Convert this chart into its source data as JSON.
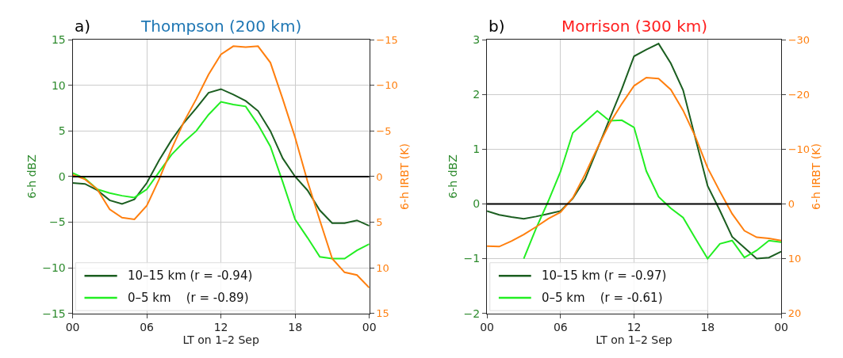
{
  "chart_data": [
    {
      "type": "line",
      "title": "Thompson (200 km)",
      "annotations": [
        "a)"
      ],
      "xlabel": "LT on 1–2 Sep",
      "ylabel": "6-h dBZ",
      "y2label": "6-h IRBT (K)",
      "x": [
        0,
        1,
        2,
        3,
        4,
        5,
        6,
        7,
        8,
        9,
        10,
        11,
        12,
        13,
        14,
        15,
        16,
        17,
        18,
        19,
        20,
        21,
        22,
        23,
        24
      ],
      "xlim": [
        0,
        24
      ],
      "xticks": [
        {
          "value": 0,
          "label": "00"
        },
        {
          "value": 6,
          "label": "06"
        },
        {
          "value": 12,
          "label": "12"
        },
        {
          "value": 18,
          "label": "18"
        },
        {
          "value": 24,
          "label": "00"
        }
      ],
      "ylim": [
        -15,
        15
      ],
      "yticks": [
        -15,
        -10,
        -5,
        0,
        5,
        10,
        15
      ],
      "y2lim": [
        15,
        -15
      ],
      "y2ticks": [
        -15,
        -10,
        -5,
        0,
        5,
        10,
        15
      ],
      "grid": true,
      "legend": "bottom left",
      "ref_lines": [
        {
          "axis": "y",
          "value": 0,
          "color": "#000000"
        }
      ],
      "series": [
        {
          "name": "10–15 km (r = -0.94)",
          "color": "#1b5e20",
          "values": [
            -0.7,
            -0.8,
            -1.5,
            -2.6,
            -3.0,
            -2.5,
            -0.7,
            1.8,
            4.0,
            5.9,
            7.5,
            9.2,
            9.6,
            9.0,
            8.3,
            7.2,
            5.0,
            2.0,
            0.0,
            -1.5,
            -3.7,
            -5.1,
            -5.1,
            -4.8,
            -5.4
          ]
        },
        {
          "name": "0–5 km    (r = -0.89)",
          "color": "#22ee22",
          "values": [
            0.4,
            -0.2,
            -1.4,
            -1.8,
            -2.1,
            -2.3,
            -1.4,
            0.5,
            2.4,
            3.8,
            5.0,
            6.8,
            8.2,
            7.9,
            7.7,
            5.7,
            3.3,
            -0.6,
            -4.7,
            -6.7,
            -8.8,
            -9.0,
            -9.0,
            -8.1,
            -7.4
          ]
        },
        {
          "axis": "y2",
          "color": "#ff7f0e",
          "values": [
            -0.2,
            0.3,
            1.4,
            3.6,
            4.5,
            4.7,
            3.2,
            0.3,
            -3.0,
            -6.0,
            -8.5,
            -11.2,
            -13.4,
            -14.3,
            -14.2,
            -14.3,
            -12.5,
            -8.5,
            -4.3,
            0.5,
            4.8,
            9.0,
            10.5,
            10.8,
            12.2
          ]
        }
      ]
    },
    {
      "type": "line",
      "title": "Morrison (300 km)",
      "annotations": [
        "b)"
      ],
      "xlabel": "LT on 1–2 Sep",
      "ylabel": "6-h dBZ",
      "y2label": "6-h IRBT (K)",
      "x": [
        0,
        1,
        2,
        3,
        4,
        5,
        6,
        7,
        8,
        9,
        10,
        11,
        12,
        13,
        14,
        15,
        16,
        17,
        18,
        19,
        20,
        21,
        22,
        23,
        24
      ],
      "xlim": [
        0,
        24
      ],
      "xticks": [
        {
          "value": 0,
          "label": "00"
        },
        {
          "value": 6,
          "label": "06"
        },
        {
          "value": 12,
          "label": "12"
        },
        {
          "value": 18,
          "label": "18"
        },
        {
          "value": 24,
          "label": "00"
        }
      ],
      "ylim": [
        -2,
        3
      ],
      "yticks": [
        -2,
        -1,
        0,
        1,
        2,
        3
      ],
      "y2lim": [
        20,
        -30
      ],
      "y2ticks": [
        -30,
        -20,
        -10,
        0,
        10,
        20
      ],
      "grid": true,
      "legend": "bottom left",
      "ref_lines": [
        {
          "axis": "y",
          "value": 0,
          "color": "#000000"
        }
      ],
      "series": [
        {
          "name": "10–15 km (r = -0.97)",
          "color": "#1b5e20",
          "values": [
            -0.13,
            -0.2,
            -0.24,
            -0.27,
            -0.23,
            -0.18,
            -0.13,
            0.1,
            0.45,
            1.0,
            1.55,
            2.1,
            2.7,
            2.82,
            2.93,
            2.57,
            2.08,
            1.2,
            0.33,
            -0.12,
            -0.6,
            -0.8,
            -1.0,
            -0.98,
            -0.87
          ]
        },
        {
          "name": "0–5 km    (r = -0.61)",
          "color": "#22ee22",
          "values": [
            null,
            null,
            null,
            -1.0,
            -0.45,
            0.05,
            0.59,
            1.3,
            1.5,
            1.7,
            1.52,
            1.53,
            1.4,
            0.6,
            0.13,
            -0.08,
            -0.25,
            -0.63,
            -1.0,
            -0.73,
            -0.67,
            -0.98,
            -0.85,
            -0.67,
            -0.7
          ]
        },
        {
          "axis": "y2",
          "color": "#ff7f0e",
          "values": [
            7.7,
            7.8,
            6.8,
            5.6,
            4.2,
            2.7,
            1.5,
            -1.1,
            -5.4,
            -10.2,
            -14.7,
            -18.3,
            -21.6,
            -23.1,
            -22.9,
            -20.9,
            -17.1,
            -12.3,
            -6.6,
            -2.3,
            1.8,
            4.9,
            6.1,
            6.3,
            6.7
          ]
        }
      ]
    }
  ]
}
